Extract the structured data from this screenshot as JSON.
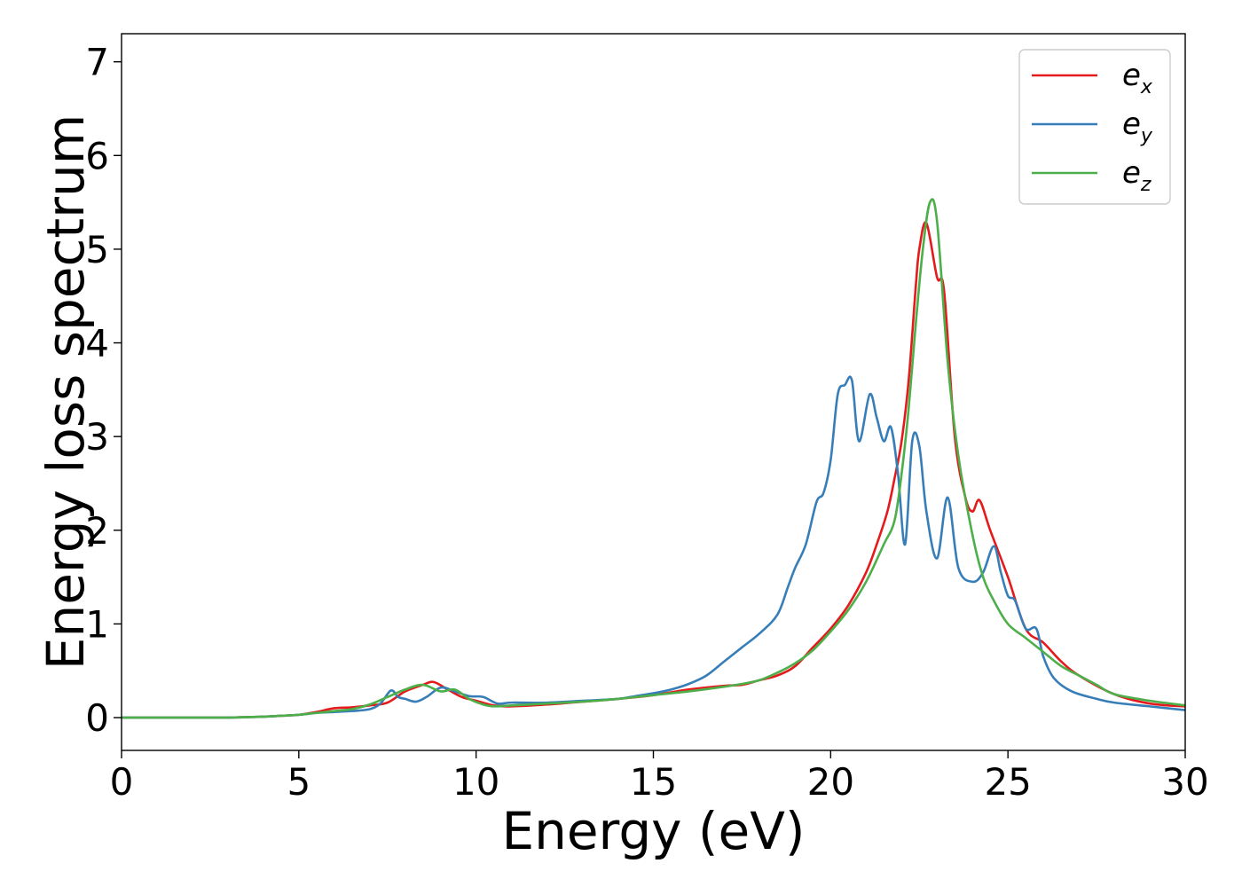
{
  "chart_data": {
    "type": "line",
    "title": "",
    "xlabel": "Energy (eV)",
    "ylabel": "Energy loss spectrum",
    "xlim": [
      0,
      30
    ],
    "ylim": [
      -0.35,
      7.3
    ],
    "xticks": [
      0,
      5,
      10,
      15,
      20,
      25,
      30
    ],
    "yticks": [
      0,
      1,
      2,
      3,
      4,
      5,
      6,
      7
    ],
    "xtick_labels": [
      "0",
      "5",
      "10",
      "15",
      "20",
      "25",
      "30"
    ],
    "ytick_labels": [
      "0",
      "1",
      "2",
      "3",
      "4",
      "5",
      "6",
      "7"
    ],
    "grid": false,
    "legend_position": "top-right",
    "series": [
      {
        "name": "e_x",
        "legend_main": "e",
        "legend_sub": "x",
        "color": "#e41a1c",
        "x": [
          0,
          1,
          2,
          3,
          4,
          4.5,
          5,
          5.5,
          6,
          6.5,
          7,
          7.5,
          8,
          8.5,
          8.8,
          9.2,
          9.6,
          10,
          10.5,
          11,
          12,
          13,
          14,
          15,
          16,
          17,
          17.5,
          18,
          18.5,
          19,
          19.5,
          20,
          20.5,
          21,
          21.3,
          21.6,
          21.8,
          22,
          22.2,
          22.4,
          22.5,
          22.7,
          23,
          23.2,
          23.5,
          23.8,
          24,
          24.2,
          24.5,
          25,
          25.5,
          26,
          26.5,
          27,
          28,
          29,
          30
        ],
        "y": [
          0,
          0,
          0,
          0,
          0.01,
          0.02,
          0.03,
          0.06,
          0.1,
          0.11,
          0.13,
          0.16,
          0.28,
          0.35,
          0.38,
          0.3,
          0.22,
          0.18,
          0.13,
          0.12,
          0.14,
          0.17,
          0.2,
          0.24,
          0.3,
          0.34,
          0.35,
          0.4,
          0.45,
          0.55,
          0.75,
          0.95,
          1.2,
          1.55,
          1.85,
          2.2,
          2.55,
          2.95,
          3.6,
          4.6,
          5.0,
          5.28,
          4.7,
          4.55,
          3.0,
          2.35,
          2.2,
          2.32,
          2.0,
          1.5,
          0.95,
          0.8,
          0.6,
          0.45,
          0.25,
          0.15,
          0.12
        ]
      },
      {
        "name": "e_y",
        "legend_main": "e",
        "legend_sub": "y",
        "color": "#377eb8",
        "x": [
          0,
          1,
          2,
          3,
          4,
          4.5,
          5,
          5.5,
          6,
          6.5,
          7,
          7.3,
          7.6,
          7.8,
          8.0,
          8.3,
          8.6,
          9.0,
          9.4,
          9.8,
          10.2,
          10.6,
          11,
          12,
          13,
          14,
          14.5,
          15,
          15.5,
          16,
          16.5,
          17,
          17.5,
          18,
          18.5,
          18.8,
          19.0,
          19.3,
          19.6,
          19.8,
          20.0,
          20.2,
          20.4,
          20.6,
          20.8,
          21.1,
          21.3,
          21.5,
          21.7,
          21.9,
          22.1,
          22.3,
          22.5,
          22.7,
          23.0,
          23.3,
          23.6,
          24.0,
          24.3,
          24.6,
          24.8,
          25.0,
          25.2,
          25.5,
          25.8,
          26.0,
          26.3,
          26.8,
          27.5,
          28,
          29,
          30
        ],
        "y": [
          0,
          0,
          0,
          0,
          0.01,
          0.02,
          0.03,
          0.05,
          0.06,
          0.07,
          0.09,
          0.15,
          0.29,
          0.22,
          0.2,
          0.17,
          0.22,
          0.32,
          0.28,
          0.23,
          0.22,
          0.15,
          0.16,
          0.16,
          0.18,
          0.2,
          0.23,
          0.26,
          0.3,
          0.36,
          0.45,
          0.6,
          0.75,
          0.9,
          1.1,
          1.4,
          1.6,
          1.85,
          2.3,
          2.4,
          2.75,
          3.45,
          3.55,
          3.6,
          2.95,
          3.45,
          3.2,
          2.95,
          3.1,
          2.6,
          1.85,
          2.95,
          2.9,
          2.2,
          1.7,
          2.35,
          1.6,
          1.45,
          1.55,
          1.83,
          1.55,
          1.3,
          1.25,
          0.95,
          0.95,
          0.65,
          0.42,
          0.28,
          0.2,
          0.16,
          0.12,
          0.08
        ]
      },
      {
        "name": "e_z",
        "legend_main": "e",
        "legend_sub": "z",
        "color": "#4daf4a",
        "x": [
          0,
          1,
          2,
          3,
          4,
          4.5,
          5,
          5.5,
          6,
          6.5,
          7,
          7.5,
          8,
          8.5,
          9.0,
          9.4,
          9.8,
          10.2,
          10.5,
          11,
          12,
          13,
          14,
          15,
          16,
          17,
          17.5,
          18,
          18.5,
          19,
          19.5,
          20,
          20.5,
          21,
          21.5,
          21.8,
          22.0,
          22.2,
          22.4,
          22.6,
          22.8,
          23.0,
          23.3,
          23.6,
          24.0,
          24.3,
          24.6,
          25.0,
          25.5,
          26.0,
          26.5,
          27.0,
          27.5,
          28,
          29,
          30
        ],
        "y": [
          0,
          0,
          0,
          0,
          0.01,
          0.02,
          0.03,
          0.05,
          0.07,
          0.09,
          0.14,
          0.22,
          0.3,
          0.35,
          0.28,
          0.3,
          0.2,
          0.14,
          0.12,
          0.13,
          0.15,
          0.17,
          0.2,
          0.24,
          0.28,
          0.33,
          0.36,
          0.4,
          0.48,
          0.58,
          0.72,
          0.92,
          1.15,
          1.45,
          1.85,
          2.1,
          2.6,
          3.3,
          4.2,
          5.0,
          5.5,
          5.3,
          3.8,
          2.8,
          1.95,
          1.5,
          1.25,
          1.0,
          0.85,
          0.7,
          0.55,
          0.45,
          0.35,
          0.25,
          0.18,
          0.13
        ]
      }
    ]
  }
}
